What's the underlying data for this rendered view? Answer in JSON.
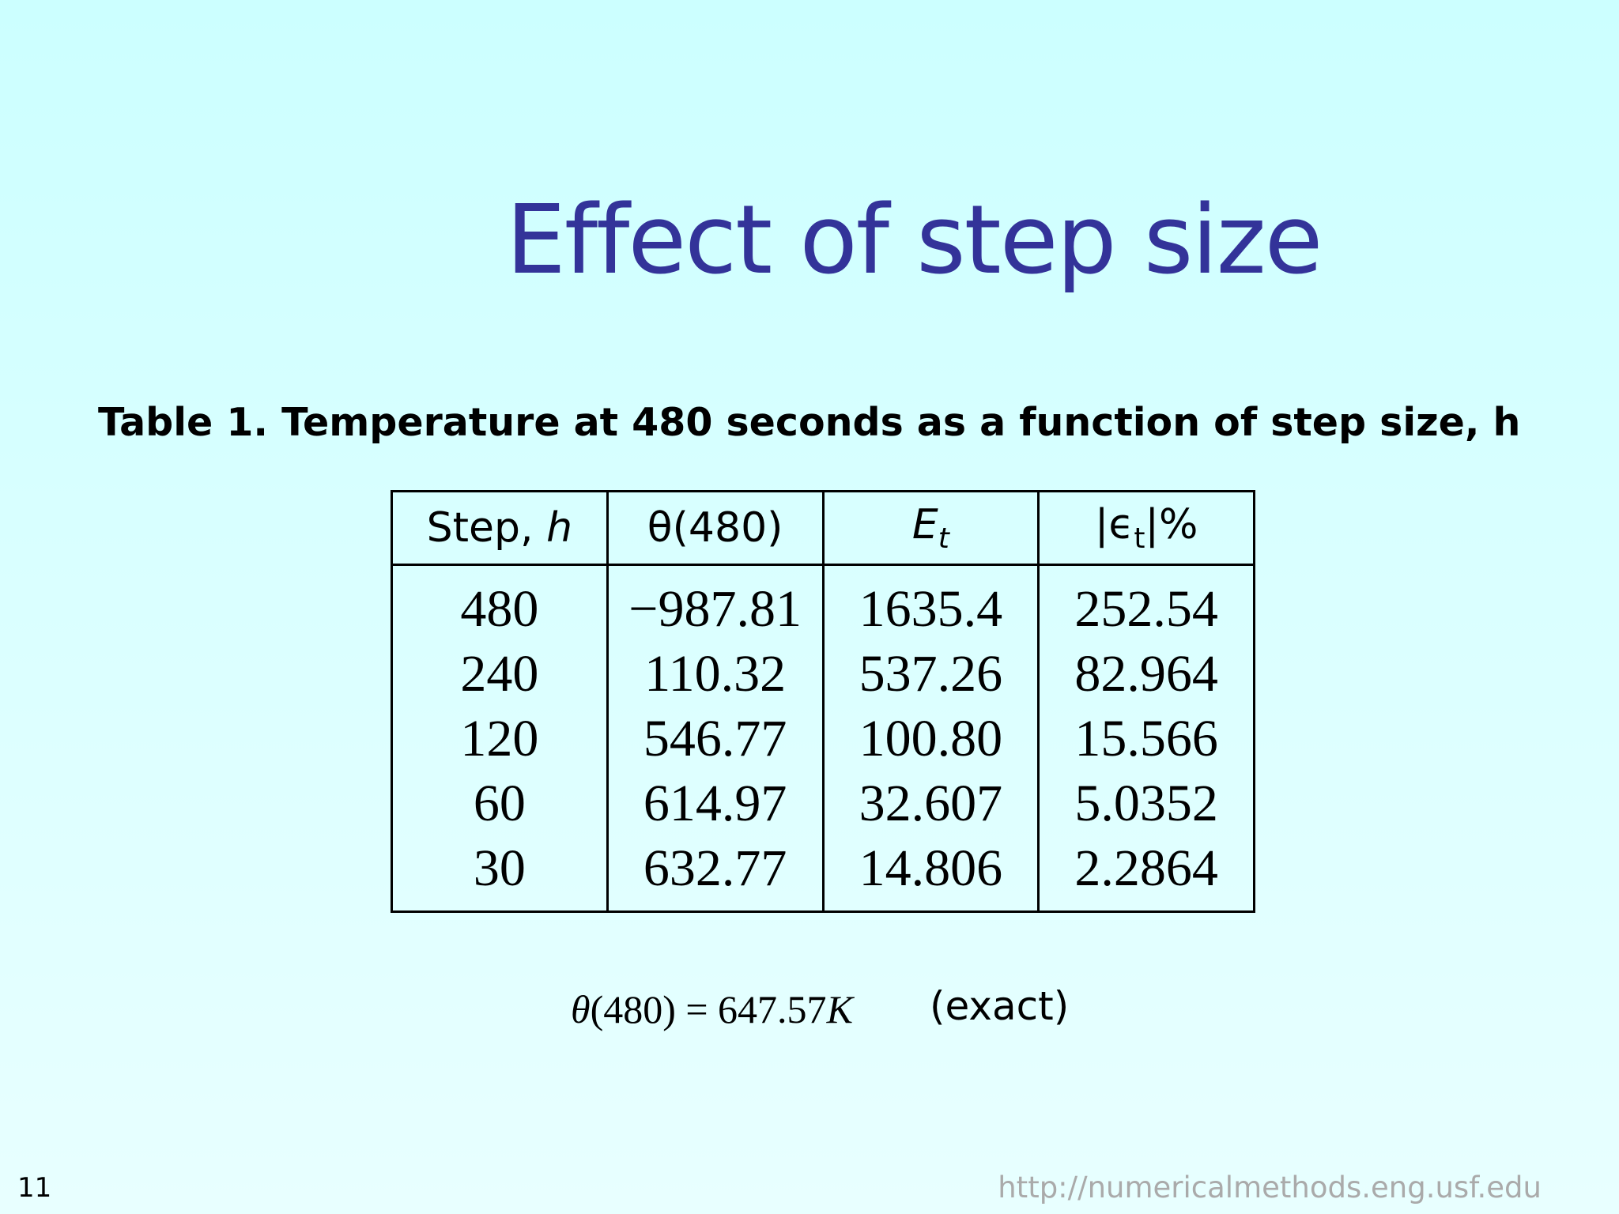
{
  "slide": {
    "title": "Effect of step size",
    "caption": "Table 1.  Temperature at 480 seconds as a function of step size, h",
    "number": "11",
    "url": "http://numericalmethods.eng.usf.edu"
  },
  "table": {
    "headers": {
      "step_text": "Step, ",
      "step_var": "h",
      "theta": "θ(480)",
      "et_main": "E",
      "et_sub": "t",
      "rel_pre": "|ϵ",
      "rel_sub": "t",
      "rel_post": "|%"
    },
    "rows": [
      {
        "step": "480",
        "theta": "−987.81",
        "Et": "1635.4",
        "rel": "252.54"
      },
      {
        "step": "240",
        "theta": "110.32",
        "Et": "537.26",
        "rel": "82.964"
      },
      {
        "step": "120",
        "theta": "546.77",
        "Et": "100.80",
        "rel": "15.566"
      },
      {
        "step": "60",
        "theta": "614.97",
        "Et": "32.607",
        "rel": "5.0352"
      },
      {
        "step": "30",
        "theta": "632.77",
        "Et": "14.806",
        "rel": "2.2864"
      }
    ]
  },
  "exact": {
    "theta": "θ",
    "arg": "(480) = 647.57",
    "unit": "K",
    "note": "(exact)"
  }
}
